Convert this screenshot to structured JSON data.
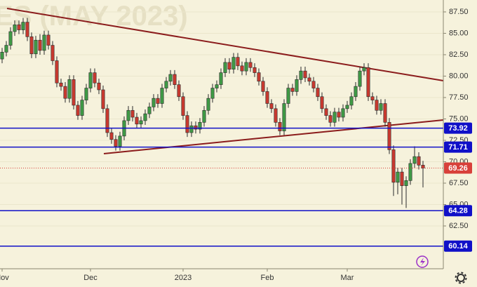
{
  "chart_data": {
    "type": "candlestick",
    "watermark": "ES (MAY 2023)",
    "categories": [
      "Nov",
      null,
      null,
      null,
      null,
      null,
      null,
      null,
      null,
      null,
      null,
      null,
      null,
      null,
      null,
      null,
      null,
      null,
      null,
      null,
      null,
      "Dec",
      null,
      null,
      null,
      null,
      null,
      null,
      null,
      null,
      null,
      null,
      null,
      null,
      null,
      null,
      null,
      null,
      null,
      null,
      null,
      null,
      null,
      "2023",
      null,
      null,
      null,
      null,
      null,
      null,
      null,
      null,
      null,
      null,
      null,
      null,
      null,
      null,
      null,
      null,
      null,
      null,
      null,
      "Feb",
      null,
      null,
      null,
      null,
      null,
      null,
      null,
      null,
      null,
      null,
      null,
      null,
      null,
      null,
      null,
      null,
      null,
      null,
      "Mar",
      null,
      null,
      null,
      null,
      null,
      null,
      null,
      null,
      null,
      null,
      null,
      null,
      null,
      null,
      null,
      null,
      null,
      null
    ],
    "open": [
      82.0,
      82.8,
      83.6,
      85.2,
      86.0,
      85.4,
      86.3,
      84.6,
      82.6,
      84.2,
      83.0,
      84.8,
      83.6,
      81.8,
      79.2,
      78.8,
      77.4,
      79.6,
      76.6,
      75.4,
      77.2,
      78.6,
      80.4,
      79.2,
      78.4,
      76.2,
      73.4,
      72.6,
      71.8,
      73.0,
      74.8,
      76.0,
      75.2,
      74.4,
      74.8,
      75.6,
      76.4,
      77.4,
      76.8,
      78.6,
      79.4,
      80.2,
      79.0,
      77.6,
      75.4,
      73.4,
      74.2,
      73.8,
      74.6,
      76.0,
      77.4,
      78.6,
      79.0,
      80.4,
      81.6,
      80.8,
      82.2,
      81.2,
      80.6,
      81.6,
      81.0,
      80.4,
      79.4,
      78.2,
      76.8,
      76.2,
      74.6,
      73.6,
      76.8,
      78.6,
      78.2,
      79.6,
      80.6,
      79.8,
      79.4,
      78.6,
      77.6,
      76.2,
      75.4,
      74.6,
      75.8,
      75.2,
      76.2,
      76.6,
      77.6,
      78.8,
      80.6,
      81.0,
      77.6,
      77.2,
      76.0,
      76.8,
      74.6,
      71.4,
      67.6,
      68.8,
      67.2,
      67.8,
      69.8,
      70.6,
      69.6
    ],
    "high": [
      83.3,
      84.1,
      85.7,
      86.5,
      86.5,
      86.8,
      86.8,
      85.1,
      84.7,
      84.9,
      85.3,
      85.3,
      84.1,
      82.3,
      79.7,
      79.3,
      80.1,
      80.1,
      77.1,
      77.7,
      79.1,
      80.9,
      80.9,
      79.7,
      78.9,
      76.7,
      73.9,
      73.1,
      73.5,
      75.3,
      76.5,
      76.5,
      75.7,
      75.3,
      76.1,
      76.9,
      77.9,
      77.9,
      79.1,
      79.9,
      80.7,
      80.7,
      79.5,
      78.1,
      75.9,
      74.7,
      74.7,
      75.1,
      76.5,
      77.9,
      79.1,
      79.5,
      80.9,
      82.1,
      82.1,
      82.7,
      82.7,
      81.7,
      82.1,
      82.1,
      81.5,
      80.9,
      79.9,
      78.7,
      77.3,
      76.7,
      75.1,
      77.3,
      79.1,
      79.1,
      80.1,
      81.1,
      81.1,
      80.3,
      79.9,
      79.1,
      78.1,
      76.7,
      75.9,
      76.3,
      76.3,
      76.7,
      77.1,
      78.1,
      79.3,
      81.1,
      81.5,
      81.5,
      78.1,
      77.7,
      77.3,
      77.3,
      75.1,
      71.9,
      69.3,
      69.3,
      68.3,
      70.3,
      71.8,
      71.1,
      70.1
    ],
    "low": [
      81.5,
      82.3,
      83.1,
      84.7,
      84.9,
      84.9,
      84.1,
      82.1,
      82.1,
      82.5,
      82.5,
      83.1,
      81.3,
      78.7,
      78.3,
      76.9,
      76.9,
      76.1,
      74.9,
      74.9,
      76.7,
      78.1,
      78.7,
      77.9,
      75.7,
      72.9,
      72.1,
      71.3,
      71.3,
      72.5,
      74.3,
      74.7,
      73.9,
      73.9,
      74.3,
      75.1,
      75.9,
      76.3,
      76.3,
      78.1,
      78.9,
      78.5,
      77.1,
      74.9,
      72.9,
      72.9,
      73.3,
      73.3,
      74.1,
      75.5,
      76.9,
      78.1,
      78.5,
      79.9,
      80.3,
      80.3,
      80.7,
      80.1,
      80.1,
      80.5,
      79.9,
      78.9,
      77.7,
      76.3,
      75.7,
      74.1,
      73.1,
      73.1,
      76.3,
      77.7,
      77.7,
      79.1,
      79.3,
      78.9,
      78.1,
      77.1,
      75.7,
      74.9,
      74.1,
      74.1,
      74.7,
      74.7,
      75.7,
      76.1,
      77.1,
      78.3,
      80.1,
      77.1,
      76.7,
      75.5,
      75.5,
      74.1,
      70.9,
      66.0,
      66.2,
      65.0,
      64.6,
      67.3,
      69.3,
      69.1,
      67.0
    ],
    "close": [
      82.8,
      83.6,
      85.2,
      86.0,
      85.4,
      86.3,
      84.6,
      82.6,
      84.2,
      83.0,
      84.8,
      83.6,
      81.8,
      79.2,
      78.8,
      77.4,
      79.6,
      76.6,
      75.4,
      77.2,
      78.6,
      80.4,
      79.2,
      78.4,
      76.2,
      73.4,
      72.6,
      71.8,
      73.0,
      74.8,
      76.0,
      75.2,
      74.4,
      74.8,
      75.6,
      76.4,
      77.4,
      76.8,
      78.6,
      79.4,
      80.2,
      79.0,
      77.6,
      75.4,
      73.4,
      74.2,
      73.8,
      74.6,
      76.0,
      77.4,
      78.6,
      79.0,
      80.4,
      81.6,
      80.8,
      82.2,
      81.2,
      80.6,
      81.6,
      81.0,
      80.4,
      79.4,
      78.2,
      76.8,
      76.2,
      74.6,
      73.6,
      76.8,
      78.6,
      78.2,
      79.6,
      80.6,
      79.8,
      79.4,
      78.6,
      77.6,
      76.2,
      75.4,
      74.6,
      75.8,
      75.2,
      76.2,
      76.6,
      77.6,
      78.8,
      80.6,
      81.0,
      77.6,
      77.2,
      76.0,
      76.8,
      74.6,
      71.4,
      67.6,
      68.8,
      67.2,
      67.8,
      69.8,
      70.6,
      69.6,
      69.26
    ],
    "up_color": "#3f9a45",
    "down_color": "#c8392f",
    "ylim": [
      57.5,
      88.89
    ],
    "yticks": [
      {
        "value": 62.5,
        "label": "62.50"
      },
      {
        "value": 65,
        "label": "65.00"
      },
      {
        "value": 67.5,
        "label": "67.50"
      },
      {
        "value": 70,
        "label": "70.00"
      },
      {
        "value": 72.5,
        "label": "72.50"
      },
      {
        "value": 75,
        "label": "75.00"
      },
      {
        "value": 77.5,
        "label": "77.50"
      },
      {
        "value": 80,
        "label": "80.00"
      },
      {
        "value": 82.5,
        "label": "82.50"
      },
      {
        "value": 85,
        "label": "85.00"
      },
      {
        "value": 87.5,
        "label": "87.50"
      }
    ],
    "grid": true,
    "levels": [
      73.92,
      71.71,
      64.28,
      60.14
    ],
    "level_color": "#1010c8",
    "last_price": 69.26,
    "last_price_color": "#d8403a"
  }
}
